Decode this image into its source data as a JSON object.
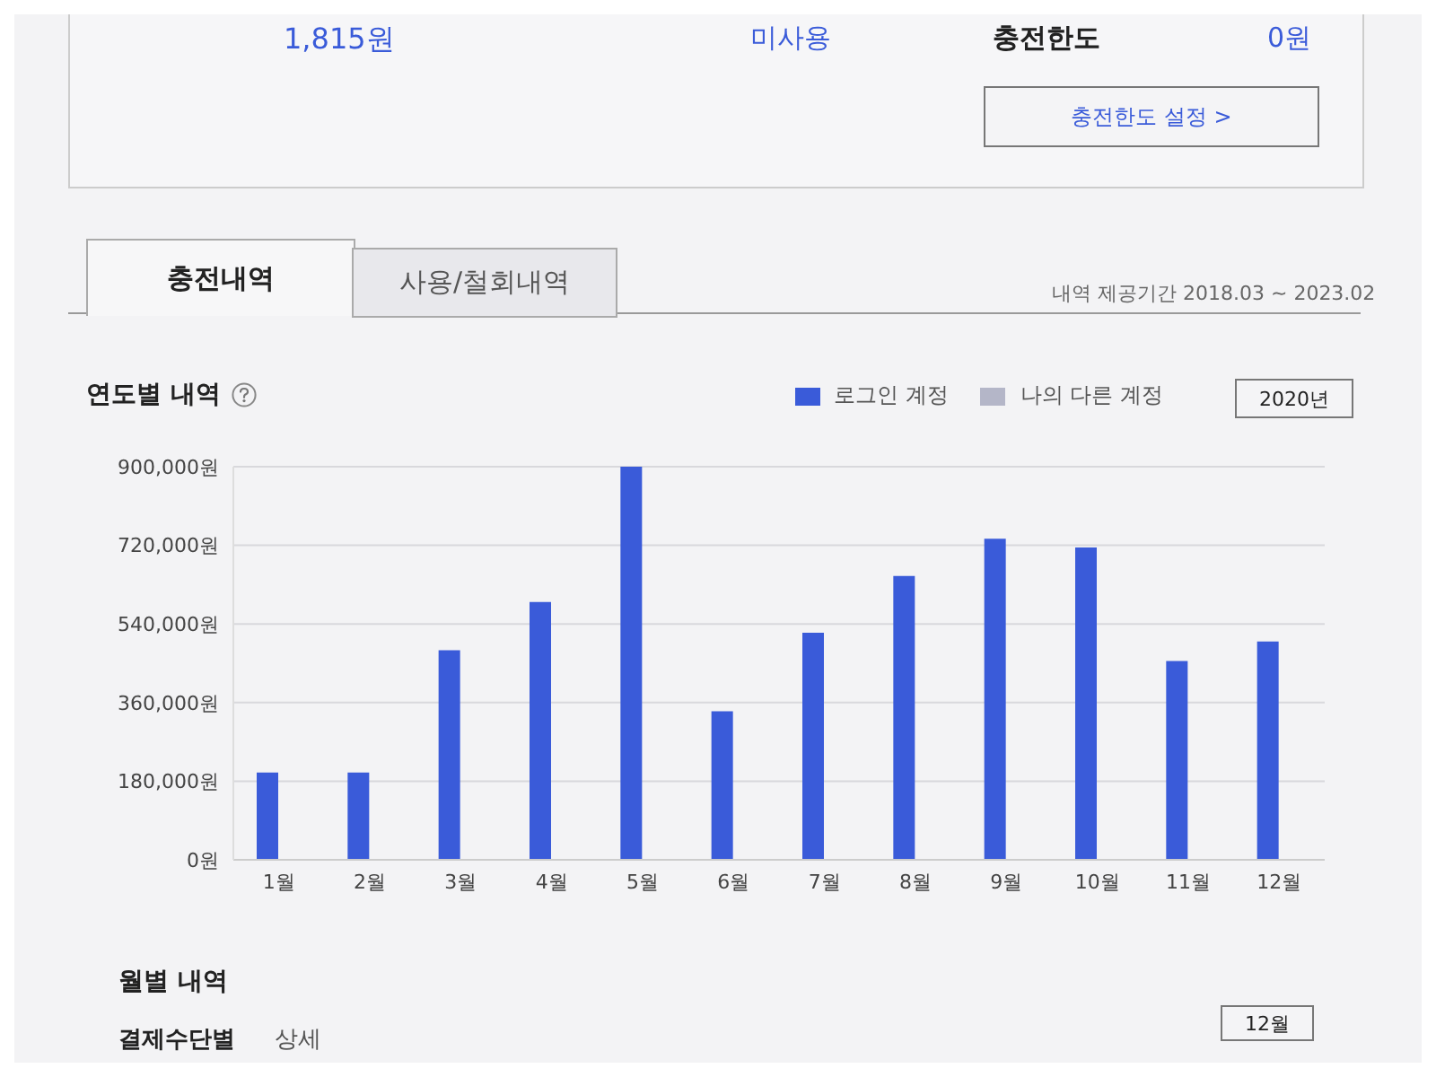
{
  "chart_data": {
    "type": "bar",
    "title": "연도별 내역",
    "categories": [
      "1월",
      "2월",
      "3월",
      "4월",
      "5월",
      "6월",
      "7월",
      "8월",
      "9월",
      "10월",
      "11월",
      "12월"
    ],
    "series": [
      {
        "name": "로그인 계정",
        "color": "#3a5bd9",
        "values": [
          200000,
          200000,
          480000,
          590000,
          900000,
          340000,
          520000,
          650000,
          735000,
          715000,
          455000,
          500000
        ]
      },
      {
        "name": "나의 다른 계정",
        "color": "#b4b6c8",
        "values": [
          0,
          0,
          0,
          0,
          0,
          0,
          0,
          0,
          0,
          0,
          0,
          0
        ]
      }
    ],
    "ylim": [
      0,
      900000
    ],
    "yticks": [
      {
        "value": 0,
        "label": "0원"
      },
      {
        "value": 180000,
        "label": "180,000원"
      },
      {
        "value": 360000,
        "label": "360,000원"
      },
      {
        "value": 540000,
        "label": "540,000원"
      },
      {
        "value": 720000,
        "label": "720,000원"
      },
      {
        "value": 900000,
        "label": "900,000원"
      }
    ],
    "grid": "y",
    "legend": "top right",
    "annotations": [
      "1,815원",
      "미사용",
      "충전한도",
      "0원",
      "충전한도 설정 >",
      "충전내역",
      "사용/철회내역",
      "내역 제공기간 2018.03 ~ 2023.02",
      "2020년",
      "월별 내역",
      "결제수단별",
      "상세",
      "12월"
    ]
  }
}
